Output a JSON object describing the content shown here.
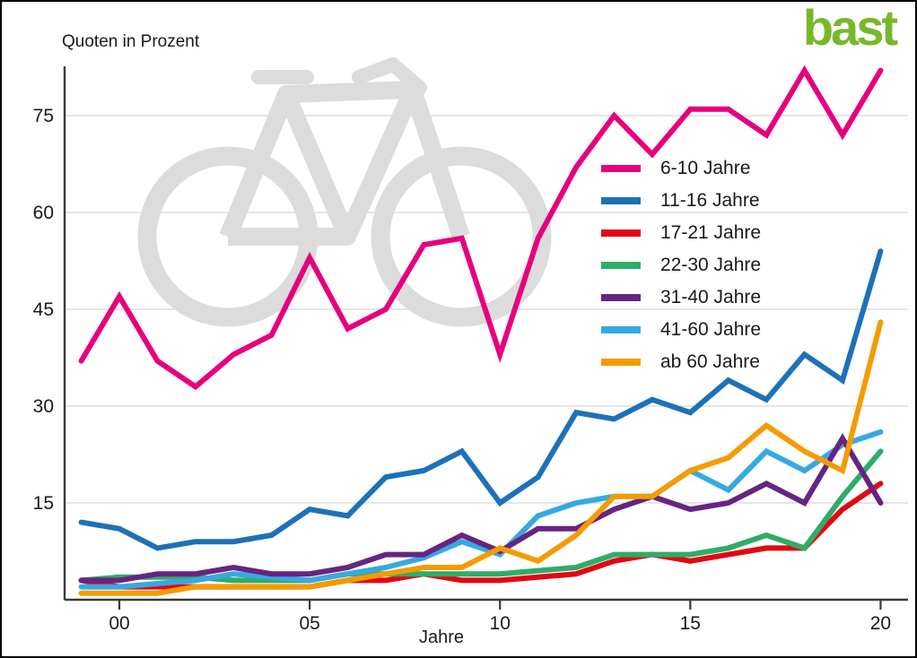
{
  "page": {
    "title": "Quoten in Prozent",
    "logo": "bast",
    "xlabel": "Jahre"
  },
  "chart_data": {
    "type": "line",
    "title": "Quoten in Prozent",
    "xlabel": "Jahre",
    "ylabel": "Quoten in Prozent",
    "x_years": [
      1999,
      2000,
      2001,
      2002,
      2003,
      2004,
      2005,
      2006,
      2007,
      2008,
      2009,
      2010,
      2011,
      2012,
      2013,
      2014,
      2015,
      2016,
      2017,
      2018,
      2019,
      2020
    ],
    "x_tick_labels": [
      "00",
      "05",
      "10",
      "15",
      "20"
    ],
    "x_tick_years": [
      2000,
      2005,
      2010,
      2015,
      2020
    ],
    "y_ticks": [
      15,
      30,
      45,
      60,
      75
    ],
    "ylim": [
      0,
      83
    ],
    "grid": true,
    "legend_position": "inside-upper-right",
    "watermark": "bicycle",
    "series": [
      {
        "name": "6-10 Jahre",
        "color": "#E6007E",
        "values": [
          37,
          47,
          37,
          33,
          38,
          41,
          53,
          42,
          45,
          55,
          56,
          38,
          56,
          67,
          75,
          69,
          76,
          76,
          72,
          82,
          72,
          82
        ]
      },
      {
        "name": "11-16 Jahre",
        "color": "#1D71B8",
        "values": [
          12,
          11,
          8,
          9,
          9,
          10,
          14,
          13,
          19,
          20,
          23,
          15,
          19,
          29,
          28,
          31,
          29,
          34,
          31,
          38,
          34,
          54
        ]
      },
      {
        "name": "17-21 Jahre",
        "color": "#E30613",
        "values": [
          3,
          2,
          2,
          2,
          2,
          2,
          2,
          3,
          3,
          4,
          3,
          3,
          3.5,
          4,
          6,
          7,
          6,
          7,
          8,
          8,
          14,
          18
        ]
      },
      {
        "name": "22-30 Jahre",
        "color": "#2FAC66",
        "values": [
          3,
          3.5,
          3.5,
          3.5,
          3,
          3,
          3,
          4,
          4,
          4,
          4,
          4,
          4.5,
          5,
          7,
          7,
          7,
          8,
          10,
          8,
          16,
          23
        ]
      },
      {
        "name": "31-40 Jahre",
        "color": "#662483",
        "values": [
          3,
          3,
          4,
          4,
          5,
          4,
          4,
          5,
          7,
          7,
          10,
          7.5,
          11,
          11,
          14,
          16,
          14,
          15,
          18,
          15,
          25,
          15
        ]
      },
      {
        "name": "41-60 Jahre",
        "color": "#36A9E1",
        "values": [
          2,
          2,
          2.5,
          3,
          4,
          3.5,
          3,
          4,
          5,
          6.5,
          9,
          7,
          13,
          15,
          16,
          16,
          20,
          17,
          23,
          20,
          24,
          26
        ]
      },
      {
        "name": "ab 60 Jahre",
        "color": "#F59B00",
        "values": [
          1,
          1,
          1,
          2,
          2,
          2,
          2,
          3,
          4,
          5,
          5,
          8,
          6,
          10,
          16,
          16,
          20,
          22,
          27,
          23,
          20,
          43
        ]
      }
    ]
  },
  "style": {
    "axis_color": "#3a3a39",
    "grid_color": "#d8d8d8",
    "tick_label_color": "#1a1a1a",
    "watermark_color": "#dcdcdc",
    "logo_color": "#76B82A"
  }
}
